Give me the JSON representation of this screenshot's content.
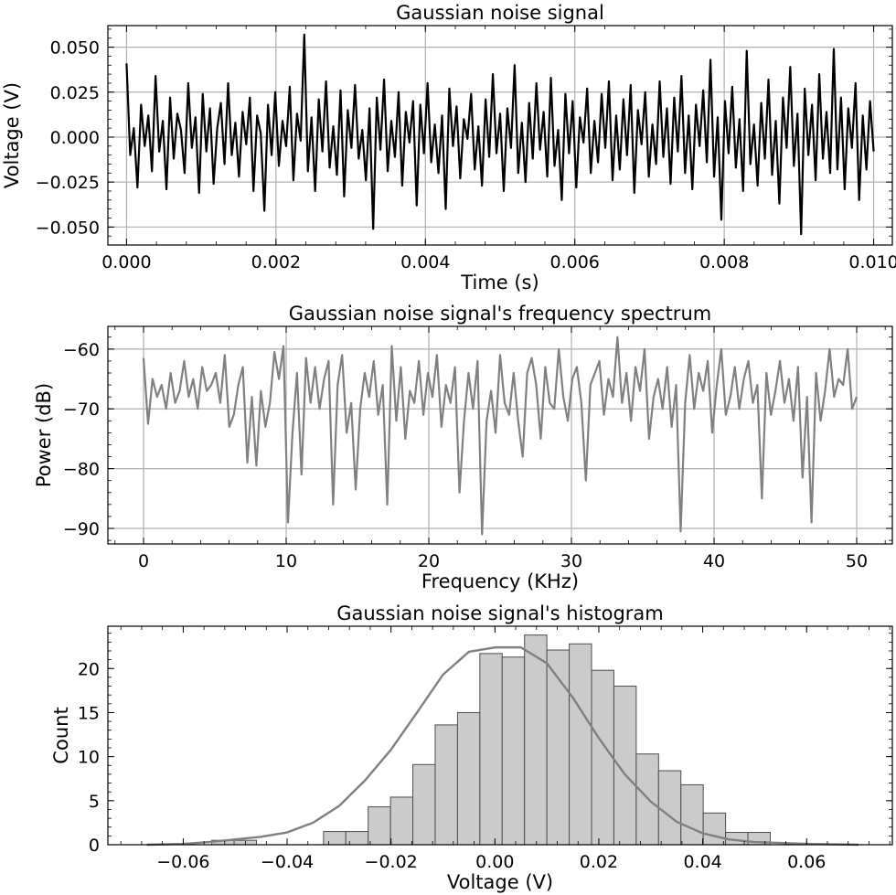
{
  "chart_data": [
    {
      "type": "line",
      "title": "Gaussian noise signal",
      "xlabel": "Time (s)",
      "ylabel": "Voltage (V)",
      "xlim": [
        -0.00025,
        0.01025
      ],
      "ylim": [
        -0.06,
        0.062
      ],
      "xticks": [
        0.0,
        0.002,
        0.004,
        0.006,
        0.008,
        0.01
      ],
      "xtick_labels": [
        "0.000",
        "0.002",
        "0.004",
        "0.006",
        "0.008",
        "0.010"
      ],
      "yticks": [
        -0.05,
        -0.025,
        0.0,
        0.025,
        0.05
      ],
      "ytick_labels": [
        "−0.050",
        "−0.025",
        "0.000",
        "0.025",
        "0.050"
      ],
      "grid": true,
      "series": [
        {
          "color": "#000000",
          "x_start": 0.0,
          "x_end": 0.01,
          "values": [
            0.041,
            -0.01,
            0.005,
            -0.028,
            0.018,
            -0.005,
            0.012,
            -0.019,
            0.034,
            -0.008,
            0.009,
            -0.029,
            0.022,
            -0.012,
            0.013,
            0.004,
            -0.02,
            0.03,
            -0.006,
            0.011,
            -0.031,
            0.024,
            -0.008,
            0.016,
            -0.026,
            0.005,
            0.019,
            -0.015,
            0.03,
            -0.01,
            0.008,
            -0.022,
            0.014,
            -0.004,
            0.022,
            -0.03,
            0.012,
            0.002,
            -0.041,
            0.018,
            -0.01,
            0.025,
            -0.016,
            0.009,
            -0.005,
            0.028,
            -0.024,
            0.013,
            -0.002,
            0.057,
            -0.019,
            0.011,
            -0.03,
            0.021,
            -0.008,
            0.031,
            -0.017,
            0.006,
            -0.021,
            0.026,
            -0.033,
            0.015,
            -0.006,
            0.029,
            -0.012,
            0.004,
            -0.024,
            0.016,
            -0.051,
            0.022,
            -0.007,
            0.032,
            -0.019,
            0.009,
            -0.011,
            0.025,
            -0.027,
            0.014,
            -0.003,
            0.02,
            -0.038,
            0.018,
            -0.009,
            0.03,
            -0.014,
            0.007,
            -0.02,
            0.012,
            -0.04,
            0.027,
            -0.005,
            0.017,
            -0.023,
            0.01,
            -0.001,
            0.024,
            -0.018,
            0.006,
            -0.027,
            0.021,
            -0.011,
            0.035,
            -0.009,
            0.013,
            -0.03,
            0.016,
            -0.006,
            0.04,
            -0.02,
            0.008,
            -0.025,
            0.019,
            -0.012,
            0.03,
            -0.007,
            0.014,
            -0.022,
            0.033,
            -0.016,
            0.004,
            -0.035,
            0.024,
            -0.009,
            0.02,
            -0.028,
            0.011,
            -0.003,
            0.027,
            -0.02,
            0.009,
            -0.014,
            0.024,
            -0.006,
            0.031,
            -0.024,
            0.012,
            -0.018,
            0.021,
            -0.01,
            0.029,
            -0.031,
            0.015,
            -0.004,
            0.025,
            -0.022,
            0.007,
            -0.015,
            0.031,
            -0.011,
            0.016,
            -0.026,
            0.022,
            -0.008,
            0.034,
            -0.02,
            0.012,
            -0.029,
            0.018,
            -0.005,
            0.026,
            -0.014,
            0.043,
            -0.022,
            0.011,
            -0.046,
            0.02,
            -0.009,
            0.028,
            -0.017,
            0.01,
            -0.03,
            0.048,
            -0.015,
            0.007,
            -0.027,
            0.019,
            -0.012,
            0.032,
            -0.021,
            0.009,
            -0.037,
            0.022,
            -0.006,
            0.039,
            -0.016,
            0.013,
            -0.054,
            0.027,
            -0.01,
            0.018,
            -0.024,
            0.035,
            -0.012,
            0.014,
            -0.02,
            0.049,
            -0.018,
            0.022,
            -0.029,
            0.016,
            -0.006,
            0.03,
            -0.035,
            0.012,
            -0.018,
            0.02,
            -0.008
          ]
        }
      ]
    },
    {
      "type": "line",
      "title": "Gaussian noise signal's frequency spectrum",
      "xlabel": "Frequency (KHz)",
      "ylabel": "Power (dB)",
      "xlim": [
        -2.5,
        52.5
      ],
      "ylim": [
        -92.6,
        -56.2
      ],
      "xticks": [
        0,
        10,
        20,
        30,
        40,
        50
      ],
      "xtick_labels": [
        "0",
        "10",
        "20",
        "30",
        "40",
        "50"
      ],
      "yticks": [
        -60,
        -70,
        -80,
        -90
      ],
      "ytick_labels": [
        "−60",
        "−70",
        "−80",
        "−90"
      ],
      "grid": true,
      "series": [
        {
          "color": "#808080",
          "x_start": 0,
          "x_end": 50,
          "values": [
            -61.5,
            -72.5,
            -65.0,
            -68.0,
            -66.0,
            -70.0,
            -64.0,
            -69.0,
            -67.0,
            -62.0,
            -68.0,
            -65.0,
            -70.0,
            -63.0,
            -67.0,
            -66.0,
            -64.0,
            -69.0,
            -61.0,
            -73.0,
            -71.0,
            -66.0,
            -63.0,
            -79.0,
            -68.0,
            -79.5,
            -67.0,
            -73.0,
            -69.0,
            -60.5,
            -65.0,
            -59.5,
            -89.0,
            -74.0,
            -64.0,
            -81.0,
            -61.5,
            -69.0,
            -63.0,
            -70.0,
            -65.0,
            -62.0,
            -86.0,
            -66.0,
            -61.0,
            -74.0,
            -69.0,
            -83.5,
            -70.0,
            -64.0,
            -68.0,
            -62.0,
            -71.0,
            -66.0,
            -86.0,
            -59.5,
            -72.0,
            -63.0,
            -75.0,
            -67.0,
            -69.0,
            -62.0,
            -71.0,
            -64.0,
            -68.0,
            -61.0,
            -73.0,
            -66.0,
            -69.0,
            -63.0,
            -84.0,
            -72.0,
            -64.0,
            -70.0,
            -62.0,
            -91.0,
            -72.0,
            -67.0,
            -74.0,
            -61.0,
            -69.0,
            -71.0,
            -64.0,
            -72.0,
            -78.0,
            -64.0,
            -61.5,
            -66.0,
            -75.0,
            -63.0,
            -69.0,
            -70.0,
            -60.0,
            -68.0,
            -72.0,
            -65.0,
            -63.0,
            -69.0,
            -82.0,
            -66.0,
            -64.0,
            -62.0,
            -71.0,
            -65.0,
            -68.0,
            -58.0,
            -69.0,
            -64.0,
            -72.0,
            -63.0,
            -67.0,
            -60.0,
            -75.0,
            -68.0,
            -65.0,
            -70.0,
            -63.0,
            -73.0,
            -66.0,
            -90.5,
            -69.0,
            -61.0,
            -70.0,
            -64.0,
            -67.0,
            -62.0,
            -74.0,
            -66.0,
            -60.0,
            -71.0,
            -68.0,
            -63.0,
            -70.0,
            -65.0,
            -62.0,
            -69.0,
            -66.0,
            -85.0,
            -64.0,
            -71.0,
            -67.0,
            -62.0,
            -69.0,
            -65.0,
            -72.0,
            -63.0,
            -81.5,
            -68.0,
            -89.0,
            -64.0,
            -72.0,
            -67.0,
            -60.0,
            -68.0,
            -65.0,
            -66.0,
            -60.0,
            -70.0,
            -68.0
          ]
        }
      ]
    },
    {
      "type": "bar",
      "title": "Gaussian noise signal's histogram",
      "xlabel": "Voltage (V)",
      "ylabel": "Count",
      "xlim": [
        -0.0745,
        0.0765
      ],
      "ylim": [
        0,
        24.8
      ],
      "xticks": [
        -0.06,
        -0.04,
        -0.02,
        0.0,
        0.02,
        0.04,
        0.06
      ],
      "xtick_labels": [
        "−0.06",
        "−0.04",
        "−0.02",
        "0.00",
        "0.02",
        "0.04",
        "0.06"
      ],
      "yticks": [
        0,
        5,
        10,
        15,
        20
      ],
      "ytick_labels": [
        "0",
        "5",
        "10",
        "15",
        "20"
      ],
      "grid": false,
      "bin_start": -0.0545,
      "bin_width": 0.0043,
      "values": [
        0.5,
        0.5,
        0,
        0,
        0,
        1.5,
        1.5,
        4.3,
        5.4,
        9.1,
        13.6,
        15.0,
        21.7,
        21.3,
        23.8,
        22.1,
        22.8,
        19.8,
        18.0,
        10.3,
        8.4,
        6.8,
        3.6,
        1.4,
        1.4
      ],
      "kde": {
        "color": "#808080",
        "x": [
          -0.067,
          -0.06,
          -0.055,
          -0.05,
          -0.045,
          -0.04,
          -0.035,
          -0.03,
          -0.025,
          -0.02,
          -0.015,
          -0.01,
          -0.005,
          0.0,
          0.005,
          0.01,
          0.015,
          0.02,
          0.025,
          0.03,
          0.035,
          0.04,
          0.045,
          0.05,
          0.055,
          0.06,
          0.07
        ],
        "y": [
          0.0,
          0.1,
          0.3,
          0.6,
          0.9,
          1.4,
          2.5,
          4.4,
          7.3,
          10.8,
          15.0,
          19.3,
          21.9,
          22.4,
          22.4,
          20.6,
          16.7,
          12.1,
          8.0,
          4.9,
          2.6,
          1.3,
          0.6,
          0.3,
          0.2,
          0.1,
          0.0
        ]
      }
    }
  ]
}
